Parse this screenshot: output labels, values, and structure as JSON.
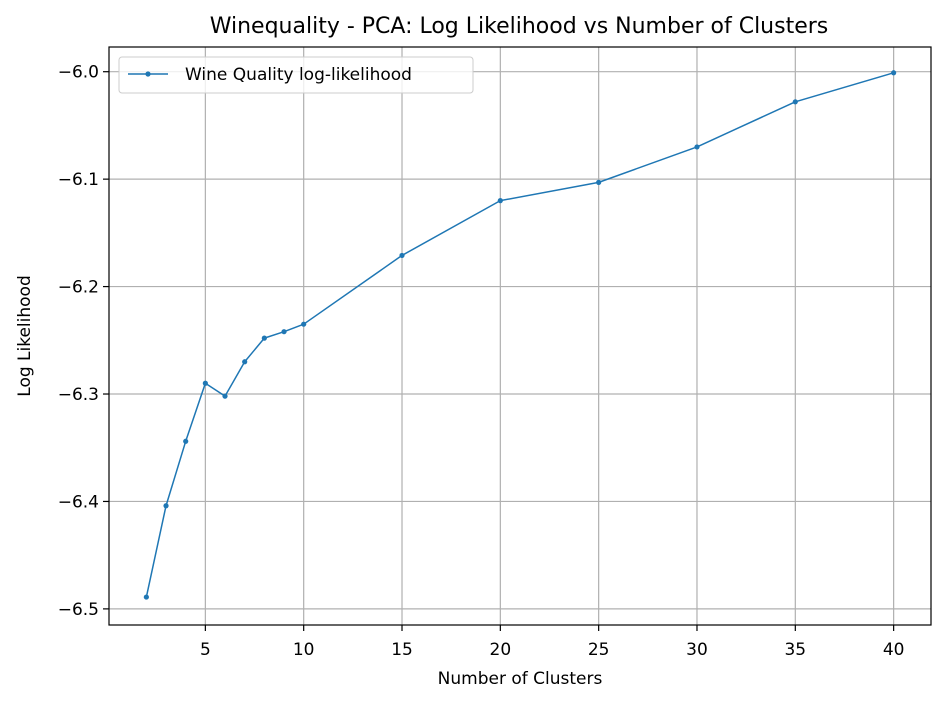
{
  "chart_data": {
    "type": "line",
    "title": "Winequality - PCA: Log Likelihood vs Number of Clusters",
    "xlabel": "Number of Clusters",
    "ylabel": "Log Likelihood",
    "xlim": [
      0.1,
      41.9
    ],
    "ylim": [
      -6.515,
      -5.977
    ],
    "xticks": [
      5,
      10,
      15,
      20,
      25,
      30,
      35,
      40
    ],
    "xtick_labels": [
      "5",
      "10",
      "15",
      "20",
      "25",
      "30",
      "35",
      "40"
    ],
    "yticks": [
      -6.5,
      -6.4,
      -6.3,
      -6.2,
      -6.1,
      -6.0
    ],
    "ytick_labels": [
      "−6.5",
      "−6.4",
      "−6.3",
      "−6.2",
      "−6.1",
      "−6.0"
    ],
    "grid": true,
    "legend_position": "top-left",
    "series": [
      {
        "name": "Wine Quality log-likelihood",
        "color": "#1f77b4",
        "marker": "dot",
        "x": [
          2,
          3,
          4,
          5,
          6,
          7,
          8,
          9,
          10,
          15,
          20,
          25,
          30,
          35,
          40
        ],
        "y": [
          -6.489,
          -6.404,
          -6.344,
          -6.29,
          -6.302,
          -6.27,
          -6.248,
          -6.242,
          -6.235,
          -6.171,
          -6.12,
          -6.103,
          -6.07,
          -6.028,
          -6.001
        ]
      }
    ]
  }
}
